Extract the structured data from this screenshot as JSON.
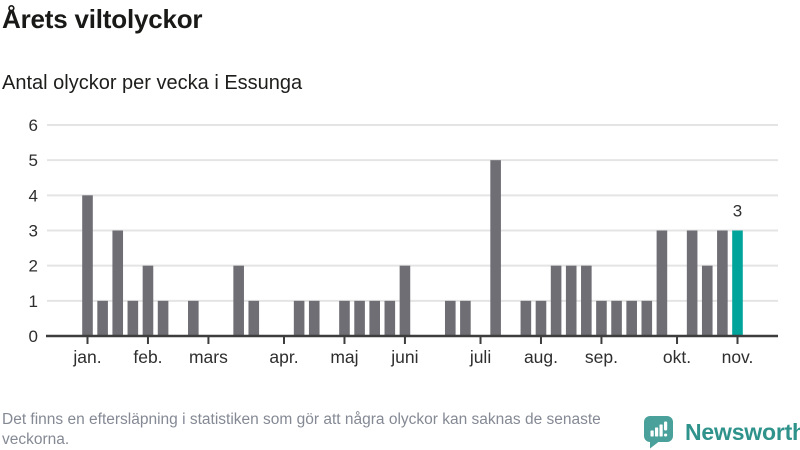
{
  "header": {
    "title": "Årets viltolyckor",
    "subtitle": "Antal olyckor per vecka i Essunga"
  },
  "chart_data": {
    "type": "bar",
    "title": "Årets viltolyckor",
    "subtitle": "Antal olyckor per vecka i Essunga",
    "xlabel": "",
    "ylabel": "",
    "ylim": [
      0,
      6
    ],
    "y_ticks": [
      0,
      1,
      2,
      3,
      4,
      5,
      6
    ],
    "grid": true,
    "categories": [
      1,
      2,
      3,
      4,
      5,
      6,
      7,
      8,
      9,
      10,
      11,
      12,
      13,
      14,
      15,
      16,
      17,
      18,
      19,
      20,
      21,
      22,
      23,
      24,
      25,
      26,
      27,
      28,
      29,
      30,
      31,
      32,
      33,
      34,
      35,
      36,
      37,
      38,
      39,
      40,
      41,
      42,
      43,
      44
    ],
    "values": [
      4,
      1,
      3,
      1,
      2,
      1,
      0,
      1,
      0,
      0,
      2,
      1,
      0,
      0,
      1,
      1,
      0,
      1,
      1,
      1,
      1,
      2,
      0,
      0,
      1,
      1,
      0,
      5,
      0,
      1,
      1,
      2,
      2,
      2,
      1,
      1,
      1,
      1,
      3,
      0,
      3,
      2,
      3,
      3
    ],
    "month_ticks": [
      {
        "label": "jan.",
        "week": 1
      },
      {
        "label": "feb.",
        "week": 5
      },
      {
        "label": "mars",
        "week": 9
      },
      {
        "label": "apr.",
        "week": 14
      },
      {
        "label": "maj",
        "week": 18
      },
      {
        "label": "juni",
        "week": 22
      },
      {
        "label": "juli",
        "week": 27
      },
      {
        "label": "aug.",
        "week": 31
      },
      {
        "label": "sep.",
        "week": 35
      },
      {
        "label": "okt.",
        "week": 40
      },
      {
        "label": "nov.",
        "week": 44
      }
    ],
    "highlight": {
      "index": 43,
      "value_label": "3",
      "color": "#00a49a"
    },
    "bar_color": "#6e6e74",
    "grid_color": "#e4e4e4",
    "axis_color": "#3d3d3d",
    "tick_label_color": "#2e2e2e",
    "value_label_color": "#303030",
    "legend": null
  },
  "footer": {
    "note": "Det finns en eftersläpning i statistiken som gör att några olyckor kan saknas de senaste veckorna.",
    "brand": "Newsworthy",
    "brand_icon_color": "#4aa19b",
    "brand_text_color": "#2f938c"
  }
}
